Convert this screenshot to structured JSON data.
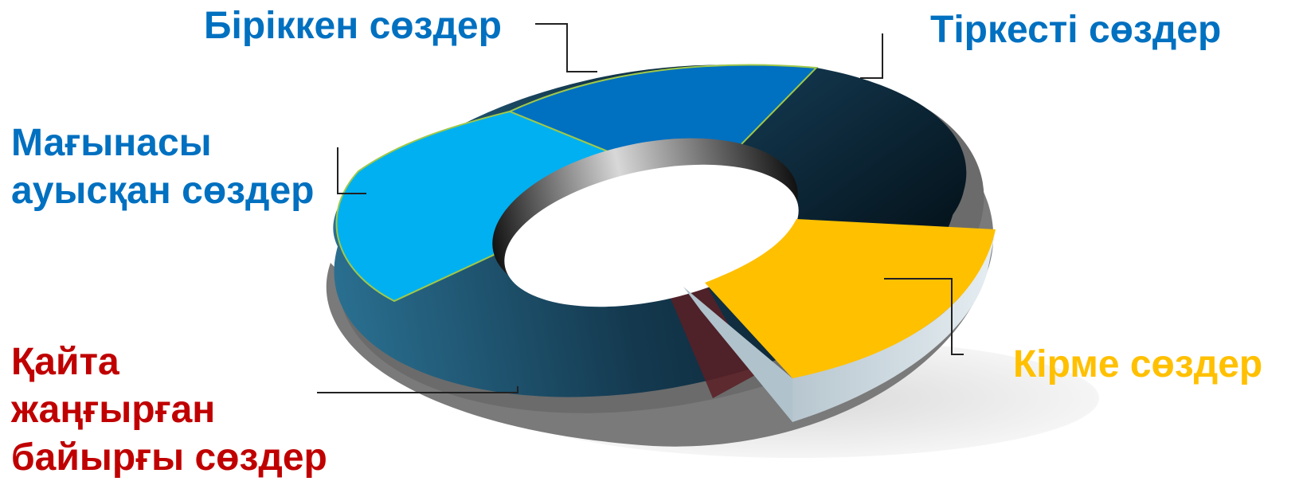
{
  "segments": [
    {
      "label": "Біріккен сөздер",
      "color": "#0070C0"
    },
    {
      "label": "Тіркесті сөздер",
      "color": "#0D2B3E"
    },
    {
      "label_lines": [
        "Мағынасы",
        "ауысқан сөздер"
      ],
      "color": "#00B0F0"
    },
    {
      "label_lines": [
        "Қайта",
        "жаңғырған",
        "байырғы сөздер"
      ],
      "color": "#C00000"
    },
    {
      "label": "Кірме сөздер",
      "color": "#FFC000"
    }
  ],
  "label_colors": {
    "blue": "#0070C0",
    "red": "#C00000",
    "yellow": "#FFC000"
  }
}
